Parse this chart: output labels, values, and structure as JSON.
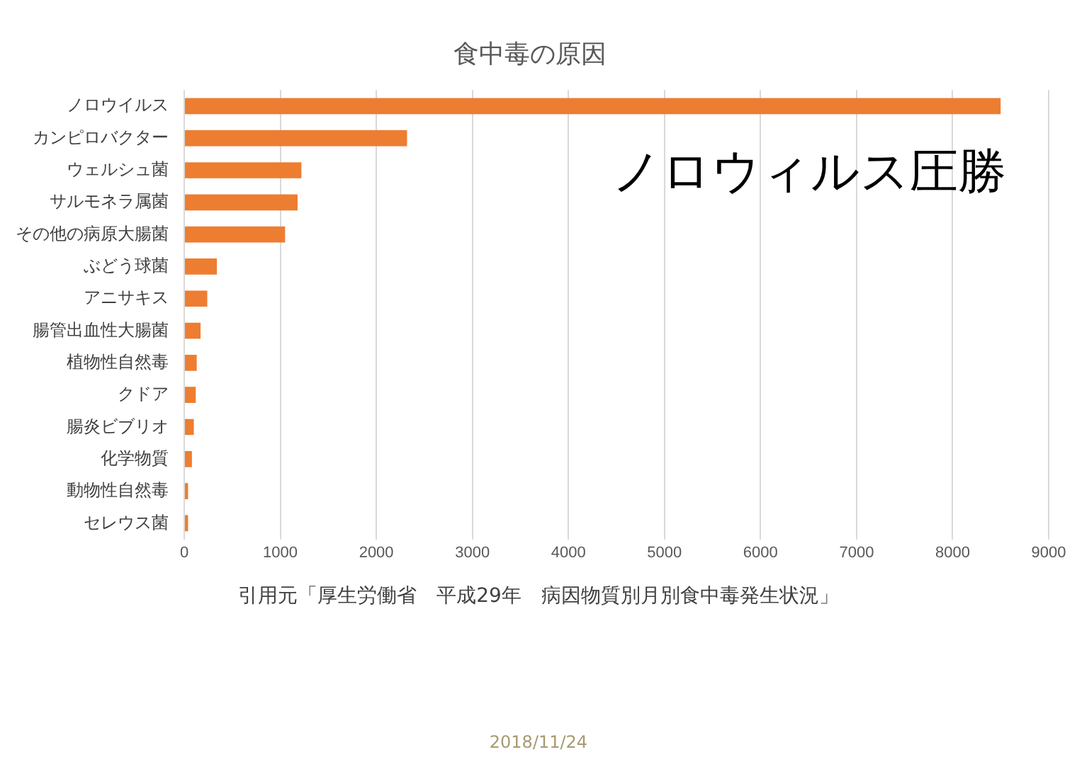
{
  "chart_data": {
    "type": "bar",
    "orientation": "horizontal",
    "title": "食中毒の原因",
    "categories": [
      "ノロウイルス",
      "カンピロバクター",
      "ウェルシュ菌",
      "サルモネラ属菌",
      "その他の病原大腸菌",
      "ぶどう球菌",
      "アニサキス",
      "腸管出血性大腸菌",
      "植物性自然毒",
      "クドア",
      "腸炎ビブリオ",
      "化学物質",
      "動物性自然毒",
      "セレウス菌"
    ],
    "values": [
      8500,
      2320,
      1220,
      1180,
      1050,
      340,
      240,
      170,
      130,
      120,
      100,
      80,
      40,
      40
    ],
    "color": "#ed7d31",
    "xlim": [
      0,
      9000
    ],
    "xticks": [
      0,
      1000,
      2000,
      3000,
      4000,
      5000,
      6000,
      7000,
      8000,
      9000
    ],
    "grid": "x",
    "legend": false,
    "annotations": [
      "ノロウィルス圧勝",
      "引用元「厚生労働省　平成29年　病因物質別月別食中毒発生状況」",
      "2018/11/24"
    ]
  }
}
